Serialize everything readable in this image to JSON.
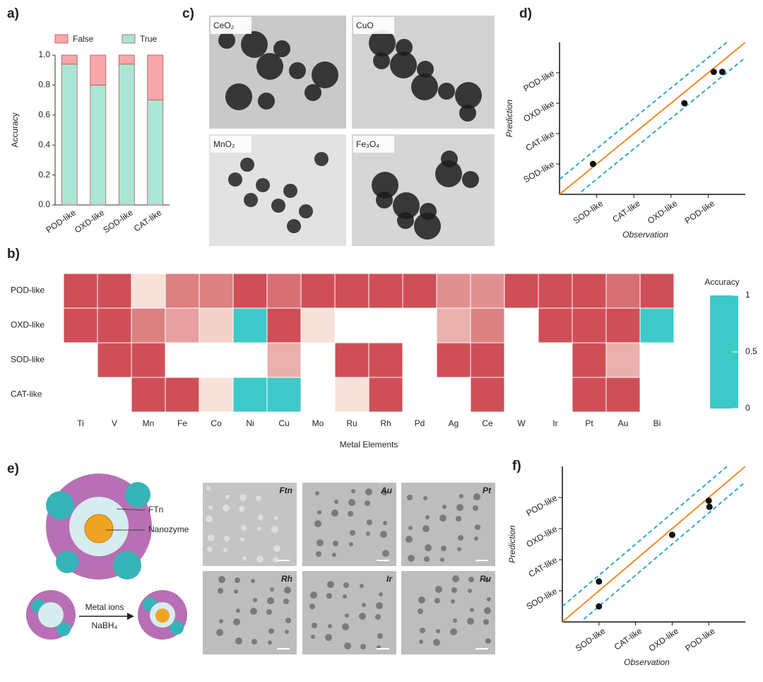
{
  "figure": {
    "panel_c": {
      "panel": "c)",
      "images": [
        "CeO₂",
        "CuO",
        "MnO₂",
        "Fe₃O₄"
      ]
    },
    "panel_e": {
      "panel": "e)",
      "labels": {
        "shell": "FTn",
        "core": "Nanozyme",
        "arrow_top": "Metal ions",
        "arrow_bottom": "NaBH₄"
      },
      "images": [
        "Ftn",
        "Au",
        "Pt",
        "Rh",
        "Ir",
        "Ru"
      ]
    }
  },
  "chart_data": [
    {
      "type": "stacked_bar",
      "panel": "a)",
      "ylabel": "Accuracy",
      "categories": [
        "POD-like",
        "OXD-like",
        "SOD-like",
        "CAT-like"
      ],
      "series": [
        {
          "name": "True",
          "color": "#a9e6d4",
          "values": [
            0.94,
            0.8,
            0.94,
            0.7
          ]
        },
        {
          "name": "False",
          "color": "#f5a7ab",
          "values": [
            0.06,
            0.2,
            0.06,
            0.3
          ]
        }
      ],
      "ylim": [
        0,
        1.0
      ],
      "yticks": [
        {
          "value": 0,
          "label": "0.0"
        },
        0.2,
        0.4,
        0.6,
        0.8,
        {
          "value": 1,
          "label": "1.0"
        }
      ]
    },
    {
      "type": "heatmap",
      "panel": "b)",
      "xlabel": "Metal Elements",
      "rows": [
        "POD-like",
        "OXD-like",
        "SOD-like",
        "CAT-like"
      ],
      "columns": [
        "Ti",
        "V",
        "Mn",
        "Fe",
        "Co",
        "Ni",
        "Cu",
        "Mo",
        "Ru",
        "Rh",
        "Pd",
        "Ag",
        "Ce",
        "W",
        "Ir",
        "Pt",
        "Au",
        "Bi"
      ],
      "values": [
        [
          1,
          1,
          0.55,
          0.85,
          0.85,
          1,
          0.9,
          1,
          1,
          1,
          1,
          0.8,
          0.8,
          1,
          1,
          1,
          0.9,
          1
        ],
        [
          1,
          1,
          0.85,
          0.75,
          0.6,
          0,
          1,
          0.55,
          null,
          null,
          null,
          0.7,
          0.85,
          null,
          1,
          1,
          1,
          0
        ],
        [
          null,
          1,
          1,
          null,
          null,
          null,
          0.7,
          null,
          1,
          1,
          null,
          1,
          1,
          null,
          null,
          1,
          0.7,
          null
        ],
        [
          null,
          null,
          1,
          1,
          0.55,
          0,
          0,
          null,
          0.55,
          1,
          null,
          null,
          1,
          null,
          null,
          1,
          1,
          null
        ]
      ],
      "colorbar": {
        "title": "Accuracy",
        "range": [
          0,
          1
        ],
        "ticks": [
          1,
          0.5,
          0
        ],
        "colors": [
          "#3ec9c9",
          "#fbf1e6",
          "#cf4f57"
        ]
      }
    },
    {
      "type": "scatter",
      "panel": "d)",
      "xlabel": "Observation",
      "ylabel": "Prediction",
      "color": "#111111",
      "x": [
        0.9,
        3.36,
        4.15,
        4.38
      ],
      "values": [
        1.0,
        3.0,
        4.03,
        4.03
      ],
      "xlim": [
        0,
        5
      ],
      "ylim": [
        0,
        5
      ],
      "xticks": [
        {
          "value": 1,
          "label": "SOD-like"
        },
        {
          "value": 2,
          "label": "CAT-like"
        },
        {
          "value": 3,
          "label": "OXD-like"
        },
        {
          "value": 4,
          "label": "POD-like"
        }
      ],
      "yticks": [
        {
          "value": 1,
          "label": "SOD-like"
        },
        {
          "value": 2,
          "label": "CAT-like"
        },
        {
          "value": 3,
          "label": "OXD-like"
        },
        {
          "value": 4,
          "label": "POD-like"
        }
      ],
      "reference_lines": [
        {
          "slope": 1,
          "intercept": 0,
          "color": "#f08a24",
          "dashed": false
        },
        {
          "slope": 1,
          "intercept": 0.5,
          "color": "#2fa8c8",
          "dashed": true
        },
        {
          "slope": 1,
          "intercept": -0.5,
          "color": "#2fa8c8",
          "dashed": true
        }
      ]
    },
    {
      "type": "scatter",
      "panel": "f)",
      "xlabel": "Observation",
      "ylabel": "Prediction",
      "color": "#111111",
      "x": [
        1,
        1,
        3,
        4,
        4.02
      ],
      "values": [
        1.3,
        0.5,
        2.8,
        3.9,
        3.7
      ],
      "xlim": [
        0,
        5
      ],
      "ylim": [
        0,
        5
      ],
      "xticks": [
        {
          "value": 1,
          "label": "SOD-like"
        },
        {
          "value": 2,
          "label": "CAT-like"
        },
        {
          "value": 3,
          "label": "OXD-like"
        },
        {
          "value": 4,
          "label": "POD-like"
        }
      ],
      "yticks": [
        {
          "value": 1,
          "label": "SOD-like"
        },
        {
          "value": 2,
          "label": "CAT-like"
        },
        {
          "value": 3,
          "label": "OXD-like"
        },
        {
          "value": 4,
          "label": "POD-like"
        }
      ],
      "reference_lines": [
        {
          "slope": 1,
          "intercept": 0,
          "color": "#f08a24",
          "dashed": false
        },
        {
          "slope": 1,
          "intercept": 0.5,
          "color": "#2fa8c8",
          "dashed": true
        },
        {
          "slope": 1,
          "intercept": -0.5,
          "color": "#2fa8c8",
          "dashed": true
        }
      ]
    }
  ]
}
